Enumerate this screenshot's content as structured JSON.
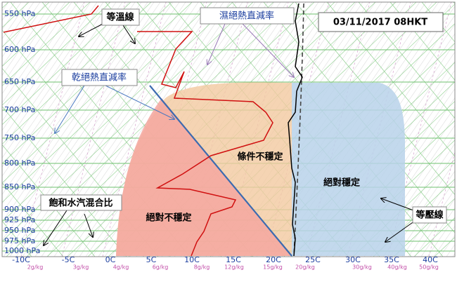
{
  "date_box": "03/11/2017 08HKT",
  "pressure_labels": [
    "550 hPa",
    "600 hPa",
    "650 hPa",
    "700 hPa",
    "750 hPa",
    "800 hPa",
    "850 hPa",
    "900 hPa",
    "925 hPa",
    "950 hPa",
    "975 hPa",
    "1000 hPa"
  ],
  "temperature_labels": [
    "-10C",
    "-5C",
    "0C",
    "5C",
    "10C",
    "15C",
    "20C",
    "25C",
    "30C",
    "35C",
    "40C"
  ],
  "mixing_ratio_labels": [
    "2g/kg",
    "3g/kg",
    "4g/kg",
    "6g/kg",
    "8g/kg",
    "12g/kg",
    "15g/kg",
    "20g/kg",
    "30g/kg",
    "40g/kg",
    "50g/kg"
  ],
  "annotations": {
    "isotherm": "等溫線",
    "moist_adiabat": "濕絕熱直減率",
    "dry_adiabat": "乾絕熱直減率",
    "mixing_ratio": "飽和水汽混合比",
    "isobar": "等壓線",
    "conditionally_unstable": "條件不穩定",
    "absolutely_stable": "絕對穩定",
    "absolutely_unstable": "絕對不穩定"
  }
}
